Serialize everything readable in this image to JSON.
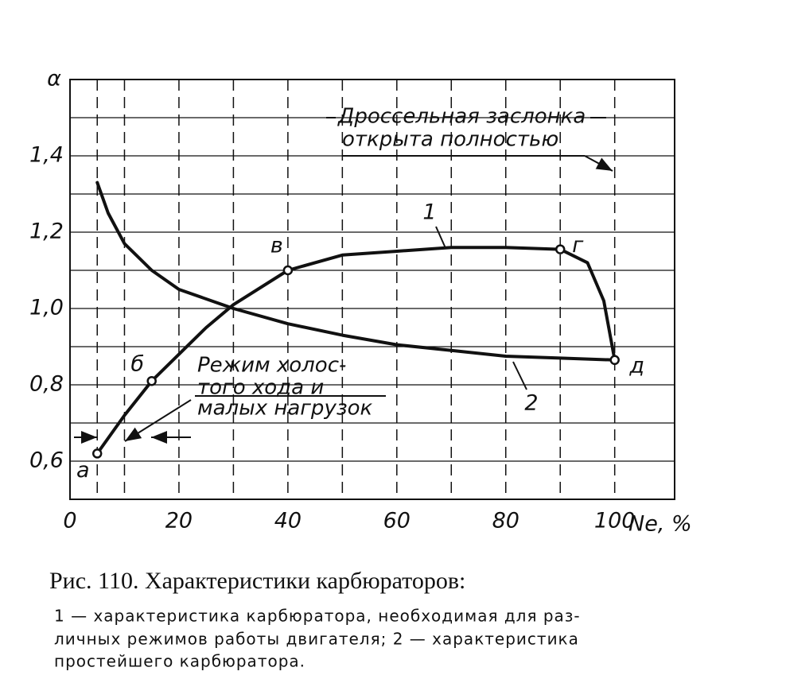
{
  "chart_data": {
    "type": "line",
    "y_label": "α",
    "x_label": "Nе, %",
    "xlim": [
      0,
      111
    ],
    "ylim": [
      0.5,
      1.6
    ],
    "xticks": [
      0,
      20,
      40,
      60,
      80,
      100
    ],
    "yticks": [
      {
        "value": 0.6,
        "label": "0,6"
      },
      {
        "value": 0.8,
        "label": "0,8"
      },
      {
        "value": 1.0,
        "label": "1,0"
      },
      {
        "value": 1.2,
        "label": "1,2"
      },
      {
        "value": 1.4,
        "label": "1,4"
      }
    ],
    "xgrid": [
      5,
      10,
      20,
      30,
      40,
      50,
      60,
      70,
      80,
      90,
      100
    ],
    "ygrid": [
      0.6,
      0.7,
      0.8,
      0.9,
      1.0,
      1.1,
      1.2,
      1.3,
      1.4,
      1.5
    ],
    "color": "#111111",
    "series": [
      {
        "name": "1",
        "x": [
          5,
          10,
          15,
          20,
          25,
          30,
          40,
          50,
          60,
          70,
          80,
          90,
          95,
          98,
          100
        ],
        "values": [
          0.62,
          0.72,
          0.81,
          0.88,
          0.95,
          1.01,
          1.1,
          1.14,
          1.15,
          1.16,
          1.16,
          1.155,
          1.12,
          1.02,
          0.865
        ]
      },
      {
        "name": "2",
        "x": [
          5,
          7,
          10,
          15,
          20,
          30,
          40,
          50,
          60,
          70,
          80,
          90,
          100
        ],
        "values": [
          1.33,
          1.25,
          1.17,
          1.1,
          1.05,
          1.0,
          0.96,
          0.93,
          0.905,
          0.89,
          0.875,
          0.87,
          0.865
        ]
      }
    ],
    "points": [
      {
        "label": "а",
        "x": 5,
        "y": 0.62
      },
      {
        "label": "б",
        "x": 15,
        "y": 0.81
      },
      {
        "label": "в",
        "x": 40,
        "y": 1.1
      },
      {
        "label": "г",
        "x": 90,
        "y": 1.155
      },
      {
        "label": "д",
        "x": 100,
        "y": 0.865
      }
    ],
    "annotations": [
      "Дроссельная заслонка",
      "открыта полностью",
      "Режим холос-",
      "того хода и",
      "малых нагрузок"
    ],
    "caption": "Рис. 110. Характеристики карбюраторов:",
    "note": [
      "1 — характеристика карбюратора, необходимая для раз-",
      "личных режимов работы двигателя; 2 — характеристика",
      "простейшего карбюратора."
    ]
  }
}
